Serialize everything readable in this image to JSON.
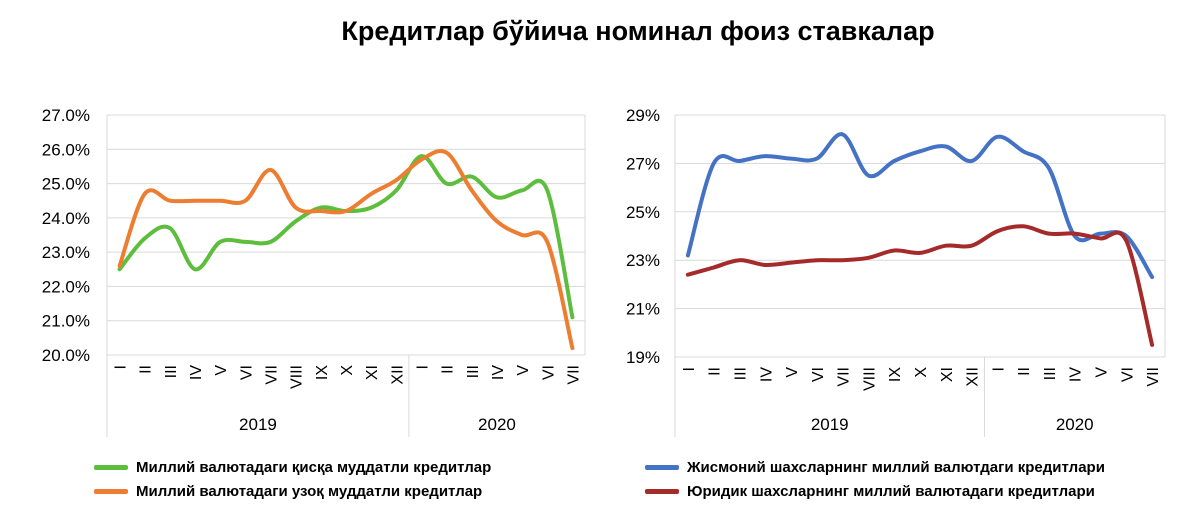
{
  "title": "Кредитлар бўйича номинал фоиз ставкалар",
  "chart_data": [
    {
      "type": "line",
      "ylim": [
        20,
        27
      ],
      "yticks": [
        "20.0%",
        "21.0%",
        "22.0%",
        "23.0%",
        "24.0%",
        "25.0%",
        "26.0%",
        "27.0%"
      ],
      "categories": [
        "I",
        "II",
        "III",
        "IV",
        "V",
        "VI",
        "VII",
        "VIII",
        "IX",
        "X",
        "XI",
        "XII",
        "I",
        "II",
        "III",
        "IV",
        "V",
        "VI",
        "VII"
      ],
      "years": [
        {
          "label": "2019",
          "span": [
            0,
            11
          ]
        },
        {
          "label": "2020",
          "span": [
            12,
            18
          ]
        }
      ],
      "grid": true,
      "legend_position": "bottom",
      "series": [
        {
          "name": "Миллий валютадаги қисқа муддатли кредитлар",
          "color": "#5dbd3c",
          "values": [
            22.5,
            23.4,
            23.7,
            22.5,
            23.3,
            23.3,
            23.3,
            23.9,
            24.3,
            24.2,
            24.3,
            24.8,
            25.8,
            25.0,
            25.2,
            24.6,
            24.8,
            24.8,
            21.1
          ]
        },
        {
          "name": "Миллий валютадаги узоқ муддатли кредитлар",
          "color": "#ed7d31",
          "values": [
            22.6,
            24.7,
            24.5,
            24.5,
            24.5,
            24.5,
            25.4,
            24.3,
            24.2,
            24.2,
            24.7,
            25.1,
            25.7,
            25.9,
            24.8,
            23.9,
            23.5,
            23.3,
            20.2
          ]
        }
      ]
    },
    {
      "type": "line",
      "ylim": [
        19,
        29
      ],
      "yticks": [
        "19%",
        "21%",
        "23%",
        "25%",
        "27%",
        "29%"
      ],
      "categories": [
        "I",
        "II",
        "III",
        "IV",
        "V",
        "VI",
        "VII",
        "VIII",
        "IX",
        "X",
        "XI",
        "XII",
        "I",
        "II",
        "III",
        "IV",
        "V",
        "VI",
        "VII"
      ],
      "years": [
        {
          "label": "2019",
          "span": [
            0,
            11
          ]
        },
        {
          "label": "2020",
          "span": [
            12,
            18
          ]
        }
      ],
      "grid": true,
      "legend_position": "bottom",
      "series": [
        {
          "name": "Жисмоний шахсларнинг миллий валютдаги кредитлари",
          "color": "#4472c4",
          "values": [
            23.2,
            27.0,
            27.1,
            27.3,
            27.2,
            27.2,
            28.2,
            26.5,
            27.1,
            27.5,
            27.7,
            27.1,
            28.1,
            27.5,
            26.8,
            24.0,
            24.1,
            24.0,
            22.3
          ]
        },
        {
          "name": "Юридик шахсларнинг миллий валютадаги кредитлари",
          "color": "#a52a2a",
          "values": [
            22.4,
            22.7,
            23.0,
            22.8,
            22.9,
            23.0,
            23.0,
            23.1,
            23.4,
            23.3,
            23.6,
            23.6,
            24.2,
            24.4,
            24.1,
            24.1,
            23.9,
            23.8,
            19.5
          ]
        }
      ]
    }
  ]
}
